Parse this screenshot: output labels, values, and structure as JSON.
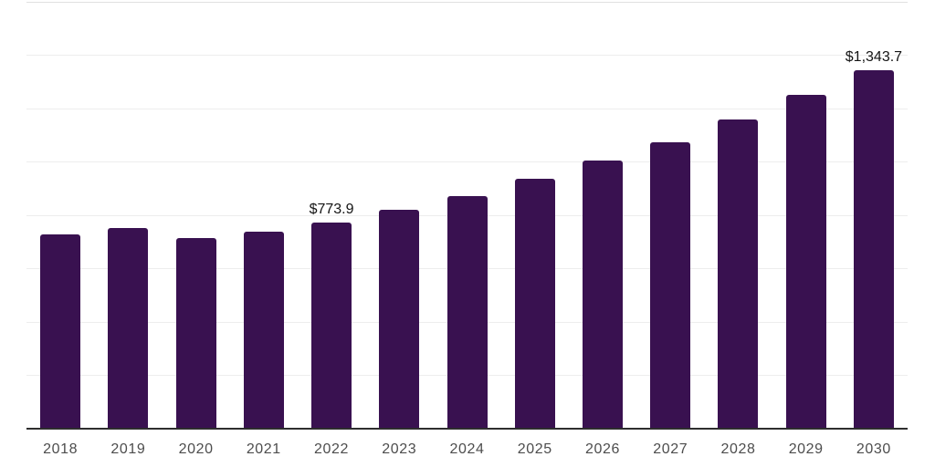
{
  "chart_data": {
    "type": "bar",
    "categories": [
      "2018",
      "2019",
      "2020",
      "2021",
      "2022",
      "2023",
      "2024",
      "2025",
      "2026",
      "2027",
      "2028",
      "2029",
      "2030"
    ],
    "values": [
      728.2,
      753.5,
      713.5,
      739.8,
      773.9,
      819.5,
      872.0,
      935.8,
      1004.2,
      1073.6,
      1158.1,
      1250.5,
      1343.7
    ],
    "data_labels": [
      "",
      "",
      "",
      "",
      "$773.9",
      "",
      "",
      "",
      "",
      "",
      "",
      "",
      "$1,343.7"
    ],
    "title": "",
    "xlabel": "",
    "ylabel": "",
    "ylim": [
      0,
      1600
    ],
    "gridline_interval": 200,
    "grid": true,
    "legend": false,
    "bar_color": "#391150"
  },
  "colors": {
    "background": "#ffffff",
    "bar": "#391150",
    "axis": "#2e2e2e",
    "gridline": "#ededed",
    "gridline_top": "#e0e0e0",
    "data_label": "#141414",
    "tick_label": "#4d4d4d"
  }
}
